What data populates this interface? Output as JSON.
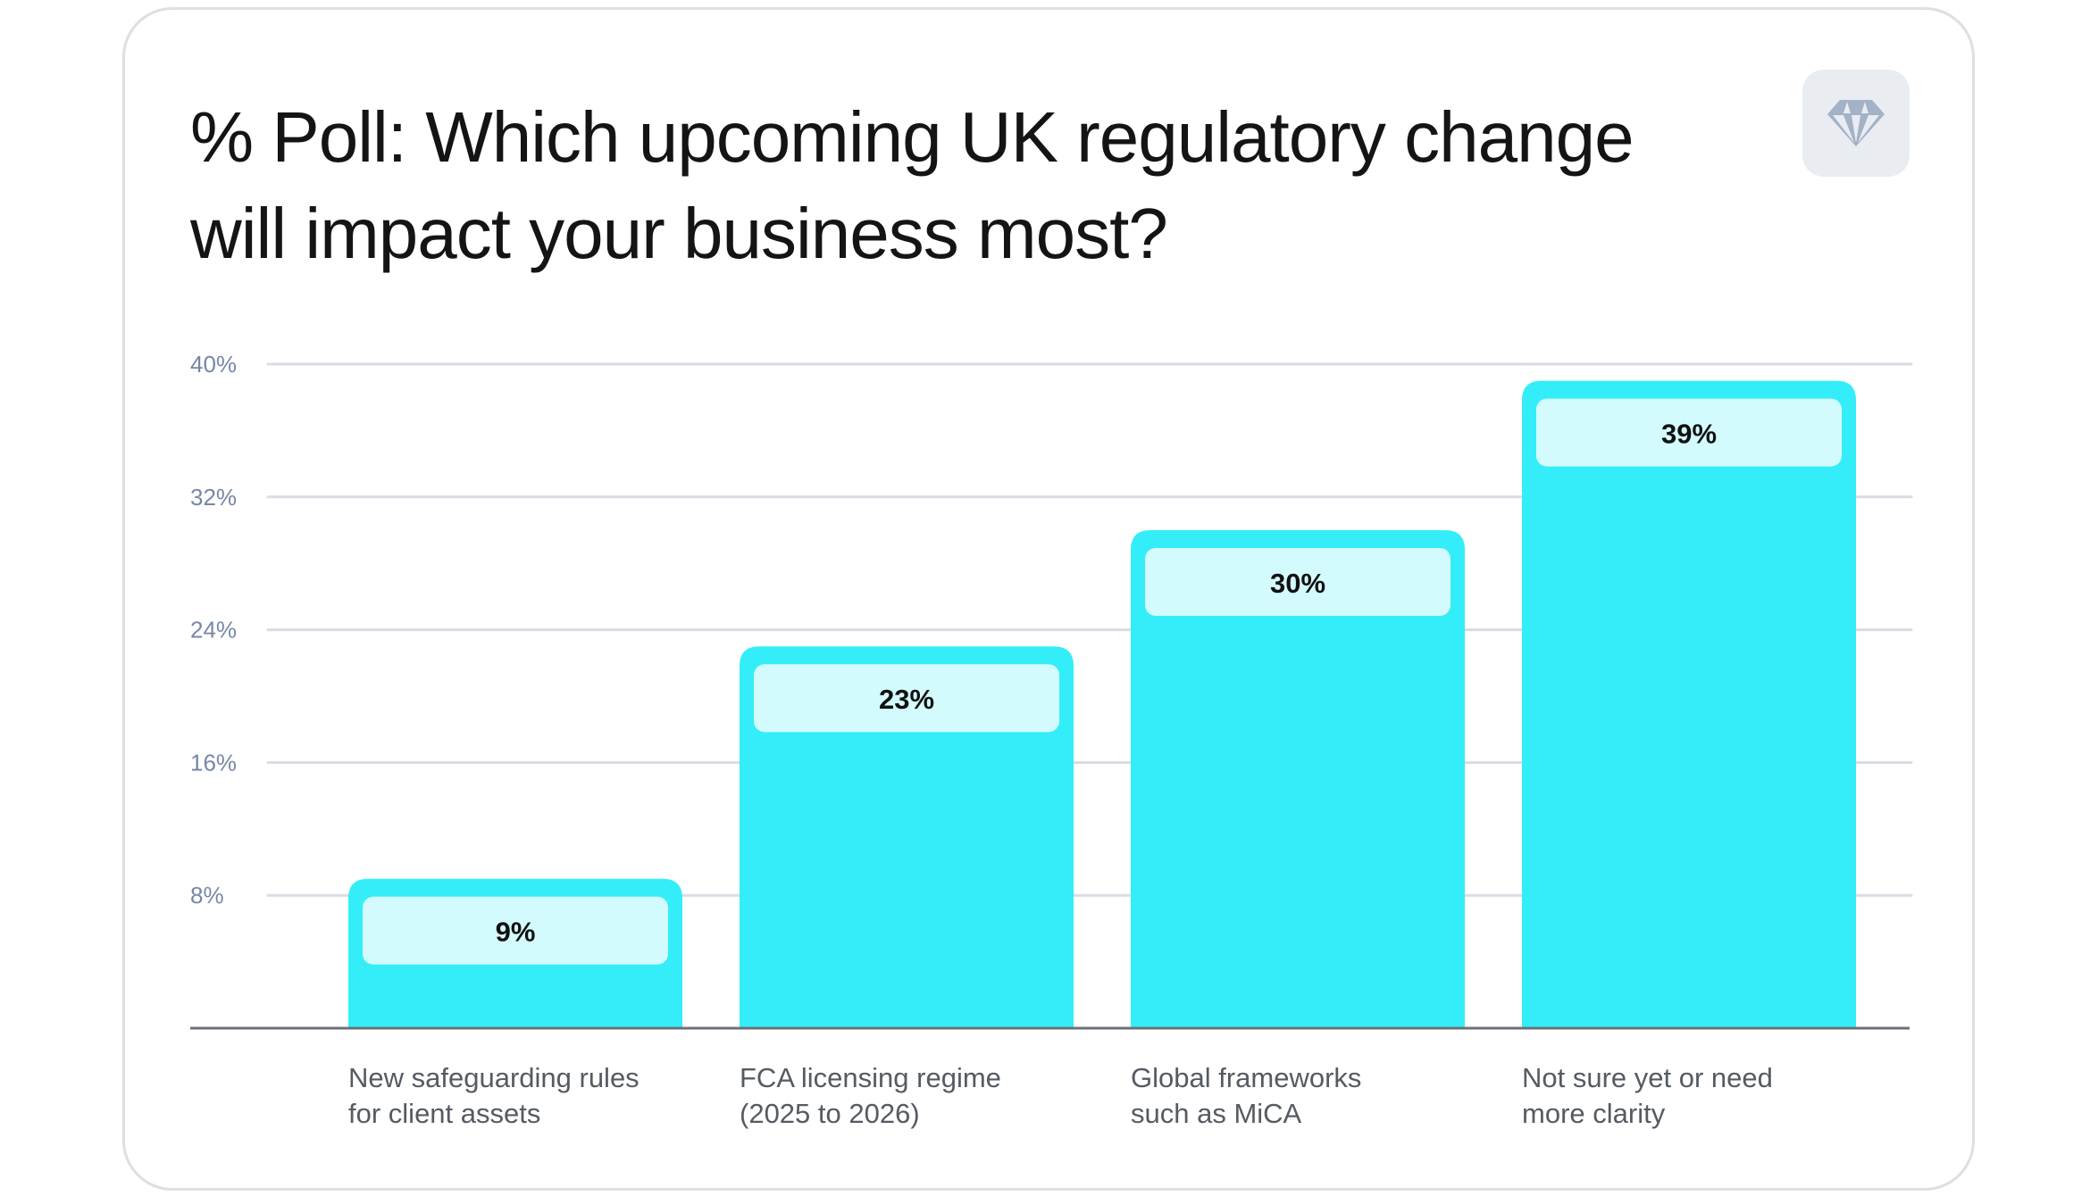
{
  "chart_data": {
    "type": "bar",
    "title": "% Poll: Which upcoming UK regulatory change will impact your business most?",
    "categories": [
      [
        "New safeguarding rules",
        "for client assets"
      ],
      [
        "FCA licensing regime",
        "(2025 to 2026)"
      ],
      [
        "Global frameworks",
        "such as MiCA"
      ],
      [
        "Not sure yet or need",
        "more clarity"
      ]
    ],
    "values": [
      9,
      23,
      30,
      39
    ],
    "value_labels": [
      "9%",
      "23%",
      "30%",
      "39%"
    ],
    "yticks": [
      8,
      16,
      24,
      32,
      40
    ],
    "ytick_labels": [
      "8%",
      "16%",
      "24%",
      "32%",
      "40%"
    ],
    "ylim": [
      0,
      40
    ],
    "xlabel": "",
    "ylabel": "",
    "grid": true,
    "colors": {
      "bar": "#33eef8",
      "label_bg": "#d3fbfd",
      "grid": "#d7dce5",
      "axis": "#6b7079"
    }
  },
  "icon": "diamond-icon"
}
